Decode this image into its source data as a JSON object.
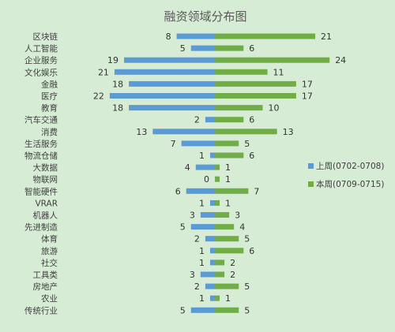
{
  "chart_data": {
    "type": "bar",
    "title": "融资领域分布图",
    "categories": [
      "区块链",
      "人工智能",
      "企业服务",
      "文化娱乐",
      "金融",
      "医疗",
      "教育",
      "汽车交通",
      "消费",
      "生活服务",
      "物流仓储",
      "大数据",
      "物联网",
      "智能硬件",
      "VRAR",
      "机器人",
      "先进制造",
      "体育",
      "旅游",
      "社交",
      "工具类",
      "房地产",
      "农业",
      "传统行业"
    ],
    "series": [
      {
        "name": "上周(0702-0708)",
        "color": "#5b9bd5",
        "values": [
          8,
          5,
          19,
          21,
          18,
          22,
          18,
          2,
          13,
          7,
          1,
          4,
          0,
          6,
          1,
          3,
          5,
          2,
          1,
          1,
          3,
          2,
          1,
          5
        ]
      },
      {
        "name": "本周(0709-0715)",
        "color": "#70ad47",
        "values": [
          21,
          6,
          24,
          11,
          17,
          17,
          10,
          6,
          13,
          5,
          6,
          1,
          1,
          7,
          1,
          3,
          4,
          5,
          6,
          2,
          2,
          5,
          1,
          5
        ]
      }
    ],
    "layout_style": "butterfly",
    "legend_position": "right",
    "grid": false
  }
}
